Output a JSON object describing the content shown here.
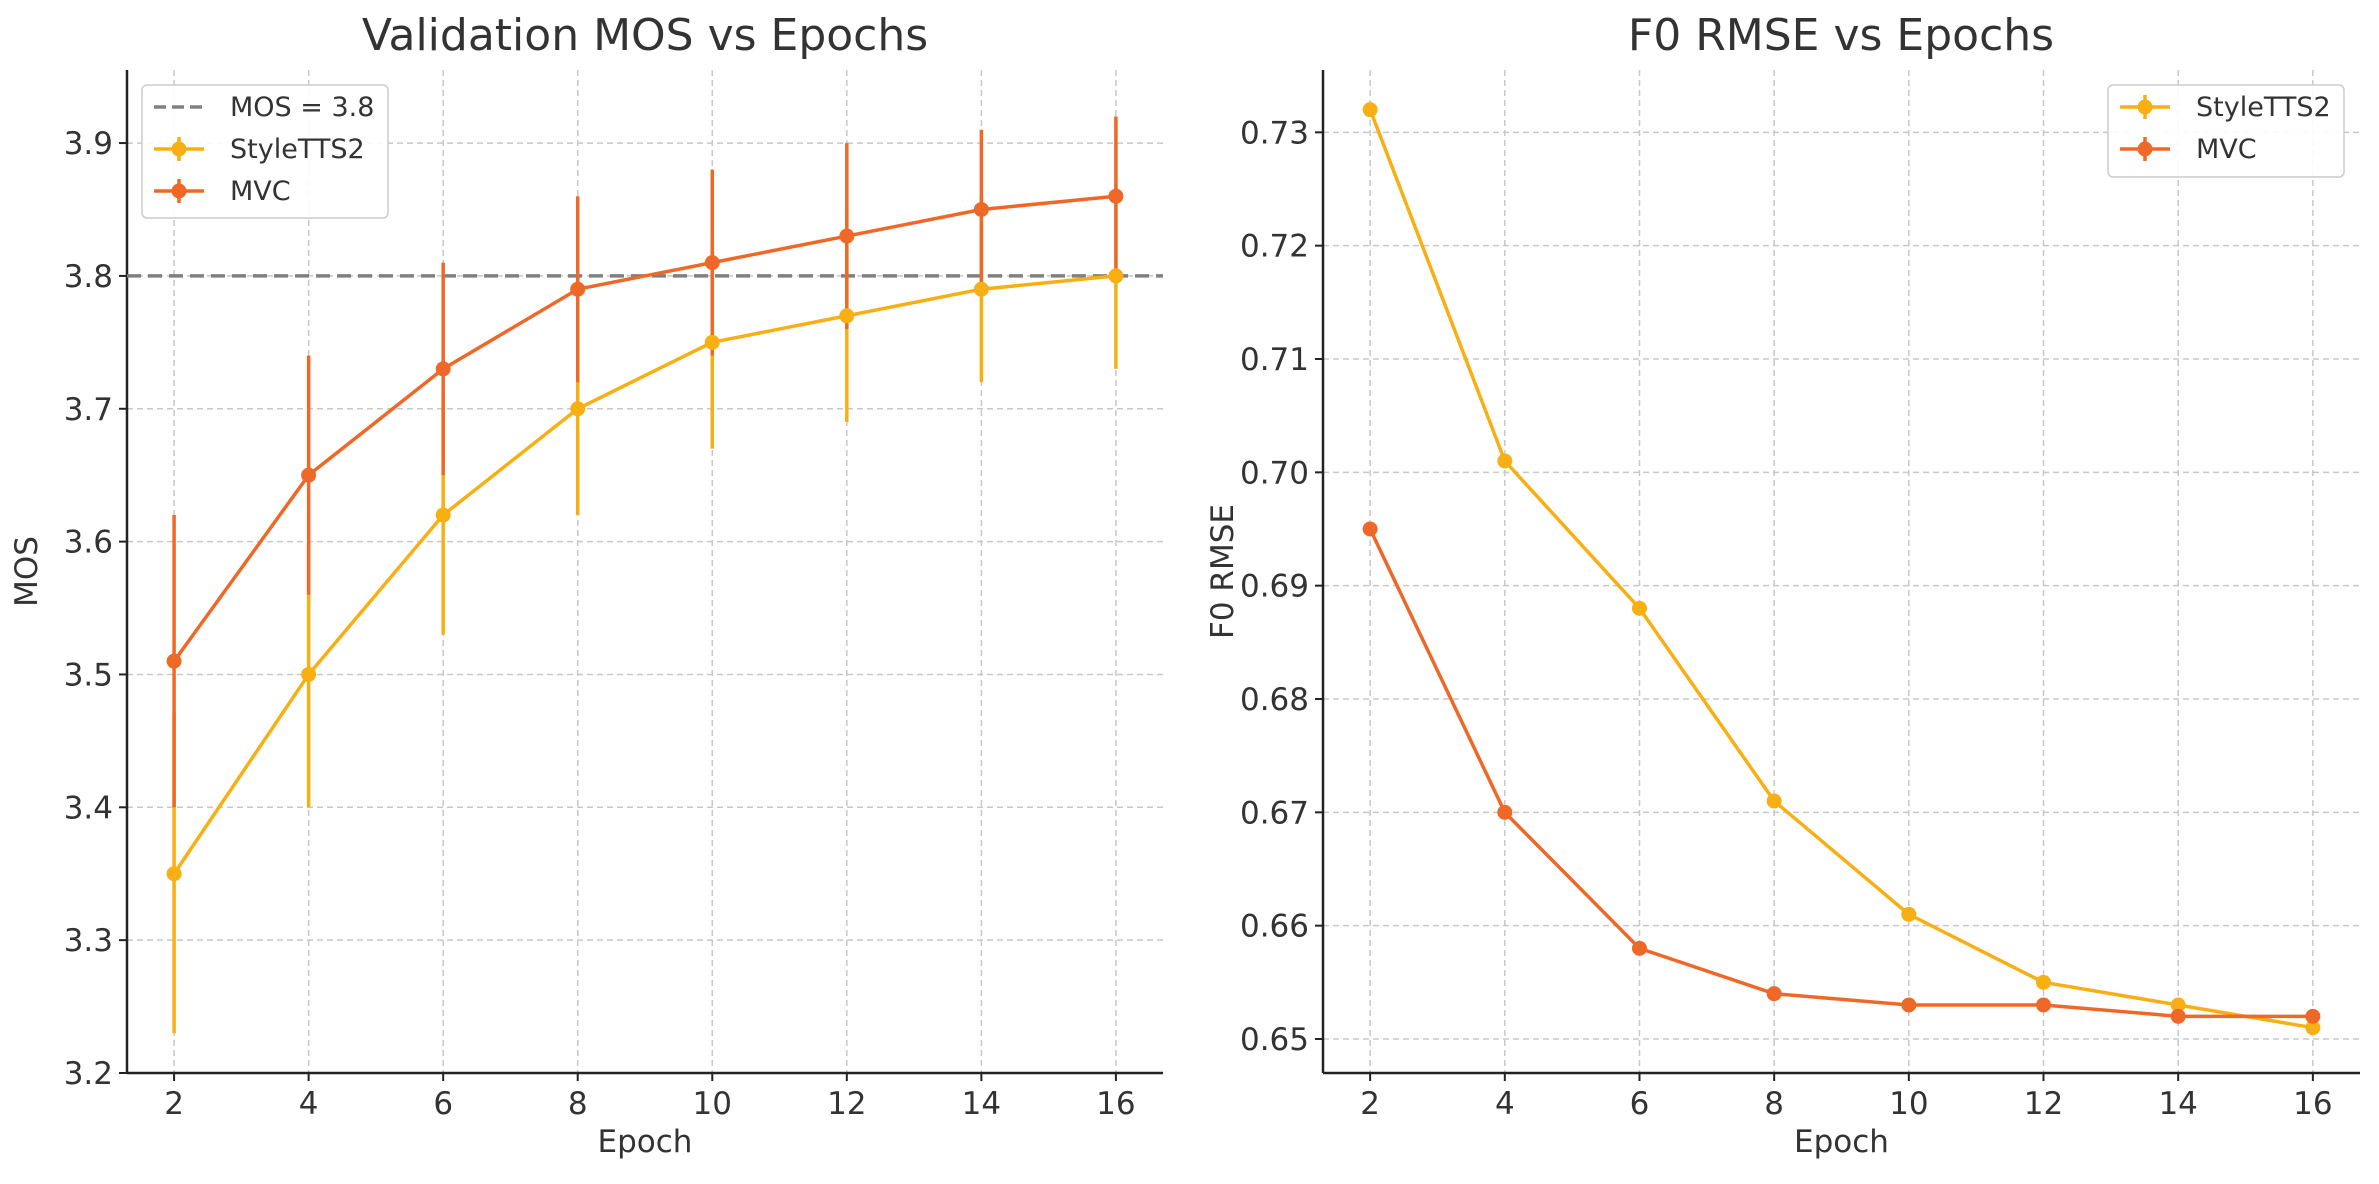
{
  "colors": {
    "styletts2": "#F8AF14",
    "mvc": "#EE6827",
    "reference": "#808080",
    "grid": "#C8C8C8",
    "axis": "#222222",
    "text": "#333333"
  },
  "chart_data": [
    {
      "type": "line",
      "title": "Validation MOS vs Epochs",
      "xlabel": "Epoch",
      "ylabel": "MOS",
      "xlim": [
        1.3,
        16.7
      ],
      "ylim": [
        3.2,
        3.955
      ],
      "xticks": [
        2,
        4,
        6,
        8,
        10,
        12,
        14,
        16
      ],
      "yticks": [
        3.2,
        3.3,
        3.4,
        3.5,
        3.6,
        3.7,
        3.8,
        3.9
      ],
      "ytick_labels": [
        "3.2",
        "3.3",
        "3.4",
        "3.5",
        "3.6",
        "3.7",
        "3.8",
        "3.9"
      ],
      "grid": true,
      "legend_position": "top-left",
      "reference_line": {
        "y": 3.8,
        "label": "MOS = 3.8",
        "style": "dashed"
      },
      "x": [
        2,
        4,
        6,
        8,
        10,
        12,
        14,
        16
      ],
      "series": [
        {
          "name": "StyleTTS2",
          "values": [
            3.35,
            3.5,
            3.62,
            3.7,
            3.75,
            3.77,
            3.79,
            3.8
          ],
          "error": [
            0.12,
            0.1,
            0.09,
            0.08,
            0.08,
            0.08,
            0.07,
            0.07
          ]
        },
        {
          "name": "MVC",
          "values": [
            3.51,
            3.65,
            3.73,
            3.79,
            3.81,
            3.83,
            3.85,
            3.86
          ],
          "error": [
            0.11,
            0.09,
            0.08,
            0.07,
            0.07,
            0.07,
            0.06,
            0.06
          ]
        }
      ]
    },
    {
      "type": "line",
      "title": "F0 RMSE vs Epochs",
      "xlabel": "Epoch",
      "ylabel": "F0 RMSE",
      "xlim": [
        1.3,
        16.7
      ],
      "ylim": [
        0.647,
        0.7355
      ],
      "xticks": [
        2,
        4,
        6,
        8,
        10,
        12,
        14,
        16
      ],
      "yticks": [
        0.65,
        0.66,
        0.67,
        0.68,
        0.69,
        0.7,
        0.71,
        0.72,
        0.73
      ],
      "ytick_labels": [
        "0.65",
        "0.66",
        "0.67",
        "0.68",
        "0.69",
        "0.70",
        "0.71",
        "0.72",
        "0.73"
      ],
      "grid": true,
      "legend_position": "top-right",
      "x": [
        2,
        4,
        6,
        8,
        10,
        12,
        14,
        16
      ],
      "series": [
        {
          "name": "StyleTTS2",
          "values": [
            0.732,
            0.701,
            0.688,
            0.671,
            0.661,
            0.655,
            0.653,
            0.651
          ]
        },
        {
          "name": "MVC",
          "values": [
            0.695,
            0.67,
            0.658,
            0.654,
            0.653,
            0.653,
            0.652,
            0.652
          ]
        }
      ]
    }
  ]
}
